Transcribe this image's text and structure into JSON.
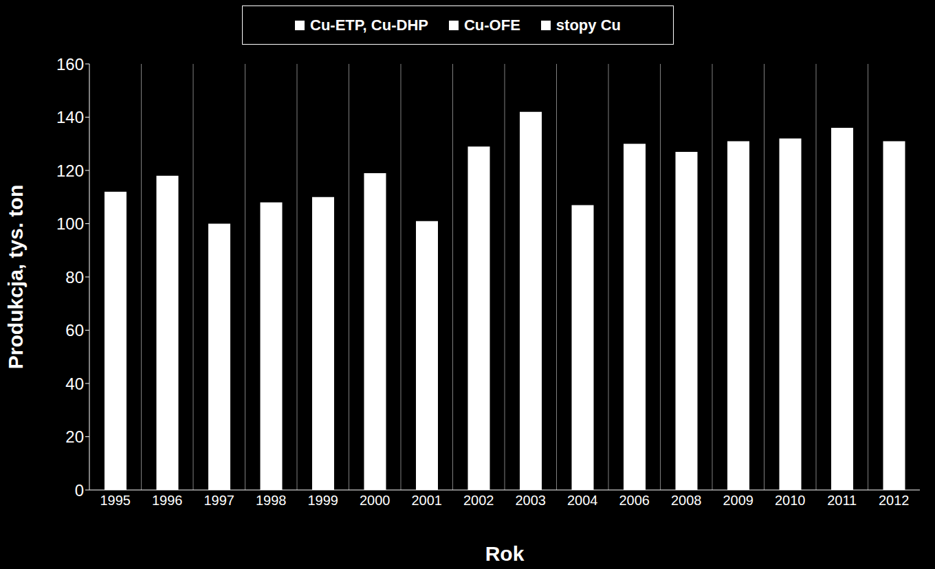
{
  "chart_data": {
    "type": "bar",
    "x_label": "Rok",
    "y_label": "Produkcja, tys. ton",
    "categories": [
      "1995",
      "1996",
      "1997",
      "1998",
      "1999",
      "2000",
      "2001",
      "2002",
      "2003",
      "2004",
      "2006",
      "2008",
      "2009",
      "2010",
      "2011",
      "2012"
    ],
    "series": [
      {
        "name": "Cu-ETP, Cu-DHP",
        "color": "#ffffff",
        "values": [
          112,
          118,
          100,
          108,
          110,
          119,
          101,
          129,
          142,
          107,
          130,
          127,
          131,
          132,
          136,
          131
        ]
      },
      {
        "name": "Cu-OFE",
        "color": "#ffffff",
        "values": [
          null,
          null,
          null,
          null,
          null,
          null,
          null,
          null,
          null,
          null,
          null,
          null,
          null,
          null,
          null,
          null
        ]
      },
      {
        "name": "stopy Cu",
        "color": "#ffffff",
        "values": [
          null,
          null,
          null,
          null,
          null,
          null,
          null,
          null,
          null,
          null,
          null,
          null,
          null,
          null,
          null,
          null
        ]
      }
    ],
    "stacked": true,
    "ylim": [
      0,
      160
    ],
    "yticks": [
      0,
      20,
      40,
      60,
      80,
      100,
      120,
      140,
      160
    ],
    "grid": true,
    "legend": "top"
  }
}
